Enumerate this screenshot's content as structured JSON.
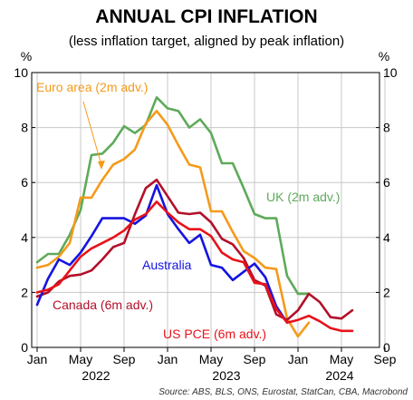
{
  "chart_data": {
    "type": "line",
    "title": "ANNUAL CPI INFLATION",
    "subtitle": "(less inflation target, aligned by peak inflation)",
    "ylabel_left": "%",
    "ylabel_right": "%",
    "ylim": [
      0,
      10
    ],
    "yticks": [
      0,
      2,
      4,
      6,
      8,
      10
    ],
    "xlim": [
      0,
      34
    ],
    "xticks": [
      {
        "x": 0,
        "label": "Jan"
      },
      {
        "x": 4,
        "label": "May"
      },
      {
        "x": 8,
        "label": "Sep"
      },
      {
        "x": 12,
        "label": "Jan"
      },
      {
        "x": 16,
        "label": "May"
      },
      {
        "x": 20,
        "label": "Sep"
      },
      {
        "x": 24,
        "label": "Jan"
      },
      {
        "x": 28,
        "label": "May"
      },
      {
        "x": 32,
        "label": "Sep"
      }
    ],
    "year_labels": [
      {
        "x": 6,
        "label": "2022"
      },
      {
        "x": 18,
        "label": "2023"
      },
      {
        "x": 30,
        "label": "2024"
      }
    ],
    "grid": true,
    "source": "Source: ABS, BLS, ONS, Eurostat, StatCan, CBA, Macrobond",
    "series": [
      {
        "name": "UK (2m adv.)",
        "color": "#5faa5a",
        "x": [
          0,
          1,
          2,
          3,
          4,
          5,
          6,
          7,
          8,
          9,
          10,
          11,
          12,
          13,
          14,
          15,
          16,
          17,
          18,
          19,
          20,
          21,
          22,
          23,
          24,
          25,
          26
        ],
        "y": [
          3.1,
          3.4,
          3.4,
          4.1,
          5.0,
          7.0,
          7.05,
          7.45,
          8.05,
          7.8,
          8.1,
          9.1,
          8.7,
          8.6,
          8.0,
          8.3,
          7.8,
          6.7,
          6.7,
          5.8,
          4.85,
          4.7,
          4.7,
          2.6,
          1.95,
          1.95,
          null
        ]
      },
      {
        "name": "Euro area (2m adv.)",
        "color": "#f59a1a",
        "x": [
          0,
          1,
          2,
          3,
          4,
          5,
          6,
          7,
          8,
          9,
          10,
          11,
          12,
          13,
          14,
          15,
          16,
          17,
          18,
          19,
          20,
          21,
          22,
          23,
          24,
          25,
          26
        ],
        "y": [
          2.9,
          3.0,
          3.3,
          3.8,
          5.45,
          5.45,
          6.1,
          6.65,
          6.85,
          7.2,
          8.15,
          8.6,
          8.1,
          7.35,
          6.65,
          6.55,
          4.95,
          4.95,
          4.2,
          3.5,
          3.25,
          2.9,
          2.85,
          1.05,
          0.4,
          0.9,
          null
        ]
      },
      {
        "name": "Canada (6m adv.)",
        "color": "#b3102a",
        "x": [
          0,
          1,
          2,
          3,
          4,
          5,
          6,
          7,
          8,
          9,
          10,
          11,
          12,
          13,
          14,
          15,
          16,
          17,
          18,
          19,
          20,
          21,
          22,
          23,
          24,
          25,
          26,
          27,
          28,
          29,
          30,
          31
        ],
        "y": [
          1.85,
          2.0,
          2.4,
          2.6,
          2.65,
          2.8,
          3.2,
          3.65,
          3.8,
          4.85,
          5.8,
          6.1,
          5.5,
          4.9,
          4.85,
          4.9,
          4.55,
          3.95,
          3.75,
          3.25,
          2.45,
          2.25,
          1.2,
          1.0,
          1.35,
          1.95,
          1.65,
          1.1,
          1.05,
          1.35,
          null,
          null
        ]
      },
      {
        "name": "Australia",
        "color": "#1414e0",
        "x": [
          0,
          1,
          2,
          3,
          4,
          5,
          6,
          7,
          8,
          9,
          10,
          11,
          12,
          13,
          14,
          15,
          16,
          17,
          18,
          19,
          20,
          21,
          22,
          23,
          24,
          25,
          26
        ],
        "y": [
          1.55,
          2.5,
          3.2,
          3.0,
          3.45,
          4.05,
          4.7,
          4.7,
          4.7,
          4.5,
          4.8,
          5.9,
          4.85,
          4.3,
          3.8,
          4.1,
          3.0,
          2.9,
          2.45,
          2.75,
          3.05,
          2.55,
          1.5,
          0.9,
          null,
          null,
          null
        ]
      },
      {
        "name": "US PCE (6m adv.)",
        "color": "#e8121a",
        "x": [
          0,
          1,
          2,
          3,
          4,
          5,
          6,
          7,
          8,
          9,
          10,
          11,
          12,
          13,
          14,
          15,
          16,
          17,
          18,
          19,
          20,
          21,
          22,
          23,
          24,
          25,
          26,
          27,
          28,
          29
        ],
        "y": [
          2.0,
          2.1,
          2.3,
          2.8,
          3.3,
          3.6,
          3.8,
          4.0,
          4.25,
          4.65,
          4.85,
          5.3,
          4.9,
          4.55,
          4.3,
          4.3,
          4.05,
          3.45,
          3.2,
          3.1,
          2.35,
          2.3,
          1.4,
          0.9,
          1.0,
          1.15,
          0.95,
          0.7,
          0.6,
          0.6
        ]
      }
    ],
    "annotations": [
      {
        "text": "Euro area (2m adv.)",
        "color": "#f59a1a"
      },
      {
        "text": "UK (2m adv.)",
        "color": "#5faa5a"
      },
      {
        "text": "Australia",
        "color": "#1414e0"
      },
      {
        "text": "Canada (6m adv.)",
        "color": "#b3102a"
      },
      {
        "text": "US PCE (6m adv.)",
        "color": "#e8121a"
      }
    ]
  }
}
